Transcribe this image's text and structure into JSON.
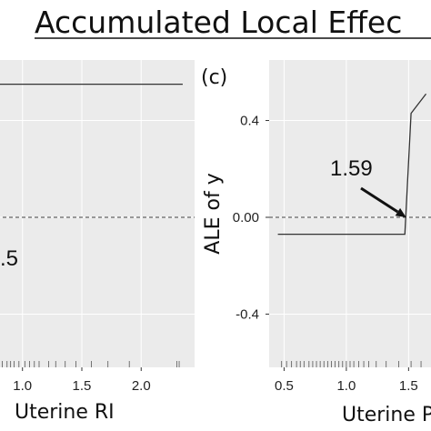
{
  "title": "Accumulated Local Effec",
  "chart_data": [
    {
      "type": "line",
      "panel": "",
      "xlabel": "Uterine RI",
      "ylabel": "",
      "x_ticks": [
        "1.0",
        "1.5",
        "2.0"
      ],
      "x_tick_values": [
        1.0,
        1.5,
        2.0
      ],
      "xlim": [
        0.78,
        2.45
      ],
      "ylim": [
        -0.62,
        0.65
      ],
      "series": [
        {
          "x": [
            0.78,
            2.35
          ],
          "y": [
            0.55,
            0.55
          ]
        }
      ],
      "reference_line_y": 0,
      "annotation": {
        "text": ".5"
      }
    },
    {
      "type": "line",
      "panel": "(c)",
      "xlabel": "Uterine P",
      "ylabel": "ALE of y",
      "x_ticks": [
        "0.5",
        "1.0",
        "1.5"
      ],
      "x_tick_values": [
        0.5,
        1.0,
        1.5
      ],
      "y_ticks": [
        "0.4",
        "0.00",
        "-0.4"
      ],
      "y_tick_values": [
        0.4,
        0.0,
        -0.4
      ],
      "xlim": [
        0.38,
        1.68
      ],
      "ylim": [
        -0.62,
        0.65
      ],
      "series": [
        {
          "x": [
            0.45,
            1.47,
            1.52,
            1.64
          ],
          "y": [
            -0.07,
            -0.07,
            0.43,
            0.51
          ]
        }
      ],
      "reference_line_y": 0,
      "annotation": {
        "text": "1.59",
        "arrow_to": [
          1.48,
          0.0
        ]
      }
    }
  ],
  "colors": {
    "panel_bg": "#ebebeb",
    "grid": "#ffffff",
    "line": "#333333",
    "ref_line": "#444444",
    "rug": "#555555"
  }
}
